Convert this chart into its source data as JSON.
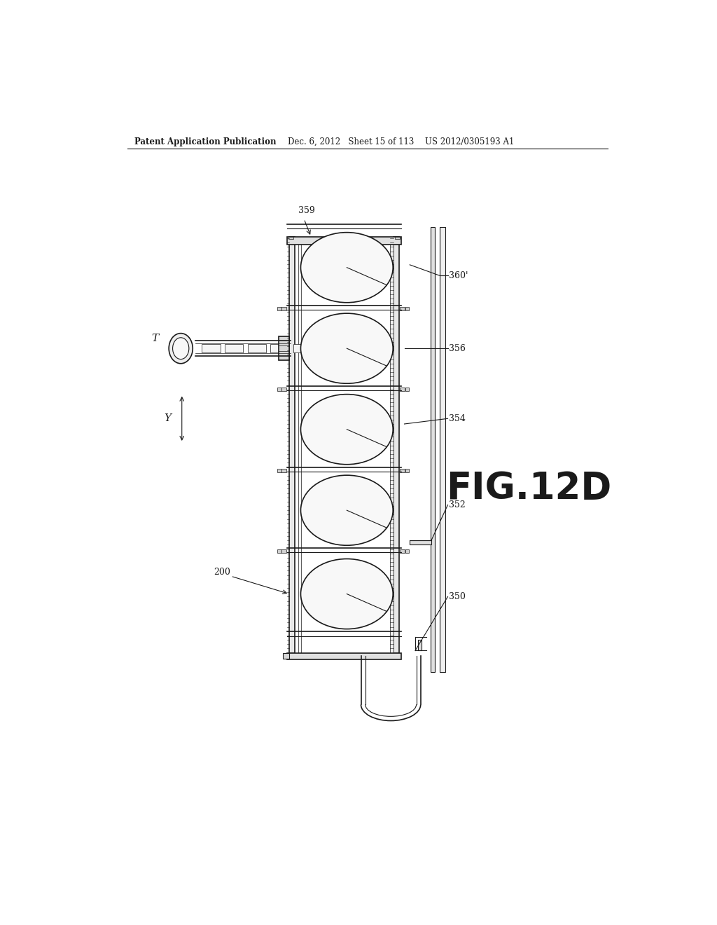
{
  "bg_color": "#ffffff",
  "header_left": "Patent Application Publication",
  "header_mid": "Dec. 6, 2012   Sheet 15 of 113",
  "header_right": "US 2012/0305193 A1",
  "fig_label": "FIG.12D",
  "line_color": "#1a1a1a",
  "gray_light": "#e8e8e8",
  "gray_mid": "#d0d0d0",
  "gray_dark": "#b0b0b0"
}
